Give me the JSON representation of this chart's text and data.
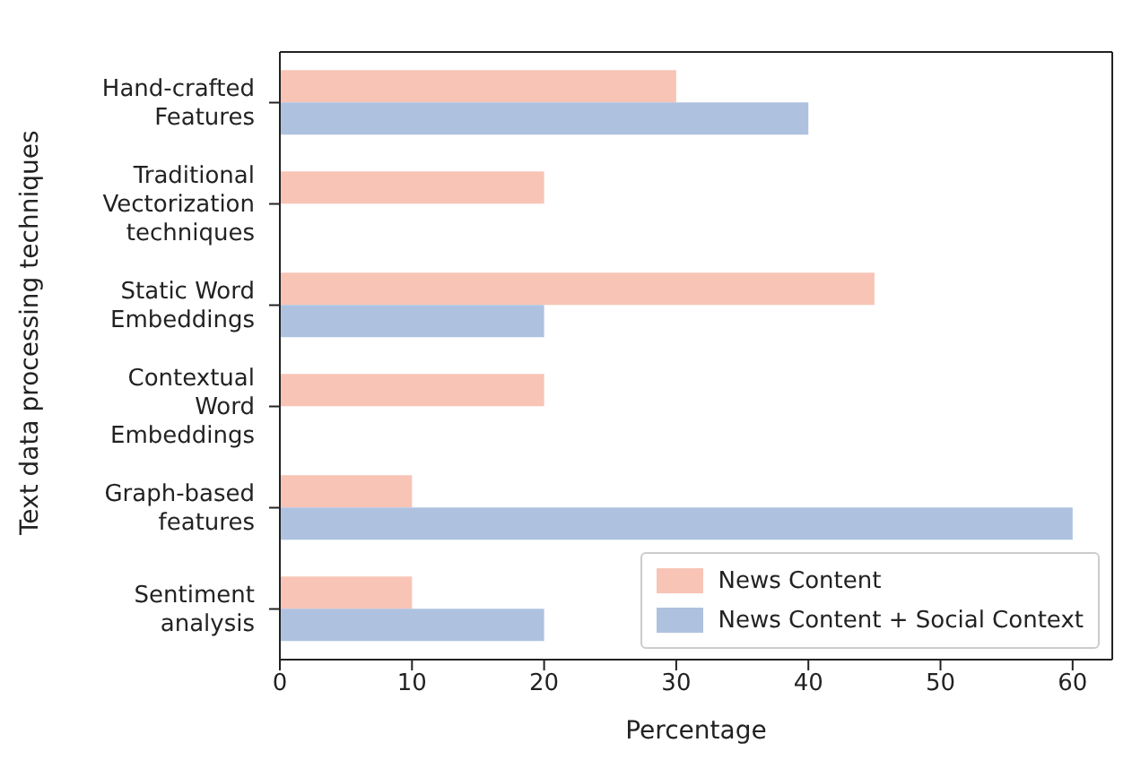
{
  "chart_data": {
    "type": "bar",
    "orientation": "horizontal",
    "xlabel": "Percentage",
    "ylabel": "Text data processing techniques",
    "categories": [
      "Hand-crafted Features",
      "Traditional Vectorization techniques",
      "Static Word Embeddings",
      "Contextual Word Embeddings",
      "Graph-based features",
      "Sentiment analysis"
    ],
    "series": [
      {
        "name": "News Content",
        "color": "#f8c4b6",
        "values": [
          30,
          20,
          45,
          20,
          10,
          10
        ]
      },
      {
        "name": "News Content + Social Context",
        "color": "#aec2e0",
        "values": [
          40,
          0,
          20,
          0,
          60,
          20
        ]
      }
    ],
    "xlim": [
      0,
      63
    ],
    "xticks": [
      0,
      10,
      20,
      30,
      40,
      50,
      60
    ],
    "grid": false,
    "legend": "bottom right"
  }
}
